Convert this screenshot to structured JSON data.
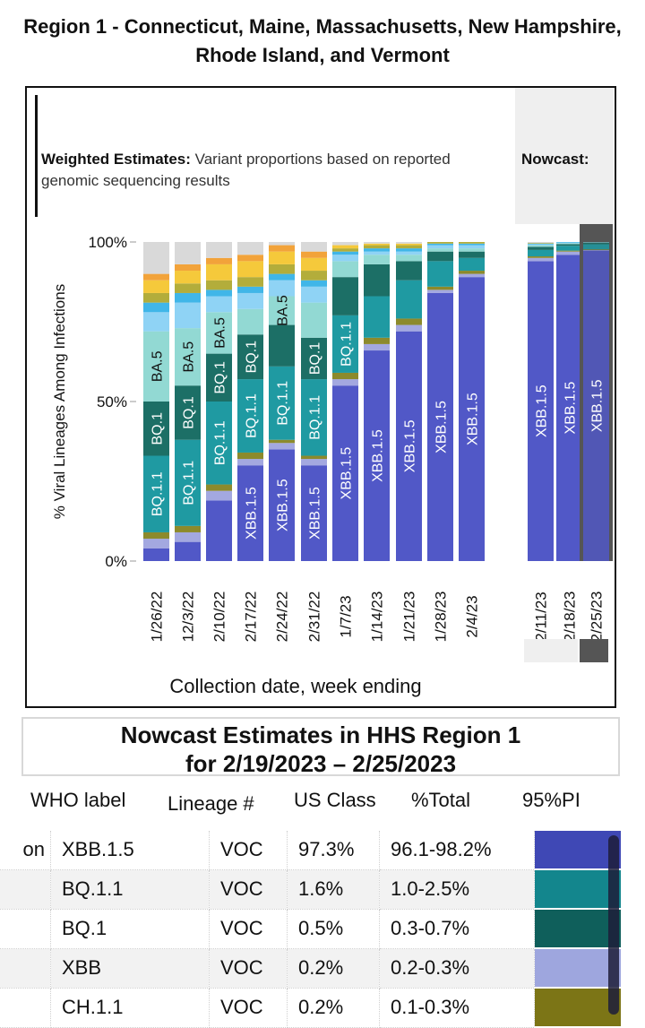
{
  "page_title": "Region 1 - Connecticut, Maine, Massachusetts, New Hampshire, Rhode Island, and Vermont",
  "chart_data": {
    "type": "bar",
    "stacked": true,
    "ylabel": "% Viral Lineages Among Infections",
    "xlabel": "Collection date, week ending",
    "yticks": [
      "100%",
      "50%",
      "0%"
    ],
    "ylim": [
      0,
      100
    ],
    "weighted_label_bold": "Weighted Estimates:",
    "weighted_label_text": "Variant proportions based on reported genomic sequencing results",
    "nowcast_label": "Nowcast:",
    "categories": [
      "1/26/22",
      "12/3/22",
      "2/10/22",
      "2/17/22",
      "2/24/22",
      "2/31/22",
      "1/7/23",
      "1/14/23",
      "1/21/23",
      "1/28/23",
      "2/4/23",
      "2/11/23",
      "2/18/23",
      "2/25/23"
    ],
    "nowcast_categories": [
      "2/11/23",
      "2/18/23",
      "2/25/23"
    ],
    "colors": {
      "XBB.1.5": "#5158c7",
      "XBB": "#a3a8e0",
      "CH.1.1": "#8c8a2c",
      "BQ.1.1": "#1f9aa2",
      "BQ.1": "#1c6f66",
      "BA.5": "#92d9d3",
      "other_light_blue": "#8fd3f5",
      "other_blue": "#40b6e8",
      "other_olive": "#b3ad3b",
      "other_yellow": "#f5c93b",
      "other_orange": "#f2a33a"
    },
    "series": [
      {
        "name": "XBB.1.5",
        "values": [
          4,
          6,
          19,
          30,
          35,
          30,
          55,
          66,
          72,
          84,
          89,
          94,
          96,
          97.3
        ]
      },
      {
        "name": "XBB",
        "values": [
          3,
          3,
          3,
          2,
          2,
          2,
          2,
          2,
          2,
          1,
          1,
          1,
          1,
          0.2
        ]
      },
      {
        "name": "CH.1.1",
        "values": [
          2,
          2,
          2,
          2,
          1,
          1,
          2,
          2,
          2,
          1,
          1,
          0.5,
          0.3,
          0.2
        ]
      },
      {
        "name": "BQ.1.1",
        "values": [
          24,
          27,
          26,
          23,
          23,
          24,
          18,
          13,
          12,
          8,
          4,
          2,
          1.5,
          1.6
        ]
      },
      {
        "name": "BQ.1",
        "values": [
          17,
          17,
          15,
          14,
          13,
          13,
          12,
          10,
          6,
          3,
          2,
          1,
          0.5,
          0.5
        ]
      },
      {
        "name": "BA.5",
        "values": [
          22,
          18,
          13,
          8,
          9,
          11,
          5,
          3,
          2,
          1,
          1,
          0.5,
          0.3,
          0.1
        ]
      },
      {
        "name": "other_light_blue",
        "values": [
          6,
          8,
          5,
          5,
          5,
          5,
          2,
          1,
          1,
          1,
          1,
          0.3,
          0.2,
          0.1
        ]
      },
      {
        "name": "other_blue",
        "values": [
          3,
          3,
          2,
          2,
          2,
          2,
          1,
          1,
          1,
          0.5,
          0.5,
          0.2,
          0.2,
          0.0
        ]
      },
      {
        "name": "other_olive",
        "values": [
          3,
          3,
          3,
          3,
          3,
          3,
          1,
          1,
          1,
          0.5,
          0.5,
          0.2,
          0.0,
          0.0
        ]
      },
      {
        "name": "other_yellow",
        "values": [
          4,
          4,
          5,
          5,
          4,
          4,
          1,
          0.5,
          0.5,
          0,
          0,
          0,
          0,
          0
        ]
      },
      {
        "name": "other_orange",
        "values": [
          2,
          2,
          2,
          2,
          2,
          2,
          0,
          0,
          0,
          0,
          0,
          0,
          0,
          0
        ]
      }
    ],
    "bar_labels": [
      [
        {
          "text": "BQ.1.1",
          "series": "BQ.1.1"
        },
        {
          "text": "BQ.1",
          "series": "BQ.1"
        },
        {
          "text": "BA.5",
          "series": "BA.5"
        }
      ],
      [
        {
          "text": "BQ.1.1",
          "series": "BQ.1.1"
        },
        {
          "text": "BQ.1",
          "series": "BQ.1"
        },
        {
          "text": "BA.5",
          "series": "BA.5"
        }
      ],
      [
        {
          "text": "BQ.1.1",
          "series": "BQ.1.1"
        },
        {
          "text": "BQ.1",
          "series": "BQ.1"
        },
        {
          "text": "BA.5",
          "series": "BA.5"
        }
      ],
      [
        {
          "text": "XBB.1.5",
          "series": "XBB.1.5"
        },
        {
          "text": "BQ.1.1",
          "series": "BQ.1.1"
        },
        {
          "text": "BQ.1",
          "series": "BQ.1"
        }
      ],
      [
        {
          "text": "XBB.1.5",
          "series": "XBB.1.5"
        },
        {
          "text": "BQ.1.1",
          "series": "BQ.1.1"
        },
        {
          "text": "BA.5",
          "series": "BA.5"
        }
      ],
      [
        {
          "text": "XBB.1.5",
          "series": "XBB.1.5"
        },
        {
          "text": "BQ.1.1",
          "series": "BQ.1.1"
        },
        {
          "text": "BQ.1",
          "series": "BQ.1"
        }
      ],
      [
        {
          "text": "XBB.1.5",
          "series": "XBB.1.5"
        },
        {
          "text": "BQ.1.1",
          "series": "BQ.1.1"
        }
      ],
      [
        {
          "text": "XBB.1.5",
          "series": "XBB.1.5"
        }
      ],
      [
        {
          "text": "XBB.1.5",
          "series": "XBB.1.5"
        }
      ],
      [
        {
          "text": "XBB.1.5",
          "series": "XBB.1.5"
        }
      ],
      [
        {
          "text": "XBB.1.5",
          "series": "XBB.1.5"
        }
      ],
      [
        {
          "text": "XBB.1.5",
          "series": "XBB.1.5"
        }
      ],
      [
        {
          "text": "XBB.1.5",
          "series": "XBB.1.5"
        }
      ],
      [
        {
          "text": "XBB.1.5",
          "series": "XBB.1.5"
        }
      ]
    ]
  },
  "nowcast_section": {
    "title_line1": "Nowcast Estimates in HHS Region 1",
    "title_line2": "for 2/19/2023 – 2/25/2023"
  },
  "table": {
    "headers": [
      "WHO label",
      "Lineage #",
      "US Class",
      "%Total",
      "95%PI"
    ],
    "rows": [
      {
        "who": "on",
        "lineage": "XBB.1.5",
        "us_class": "VOC",
        "total": "97.3%",
        "pi": "96.1-98.2%",
        "swatch": "#3f48b5"
      },
      {
        "who": "",
        "lineage": "BQ.1.1",
        "us_class": "VOC",
        "total": "1.6%",
        "pi": "1.0-2.5%",
        "swatch": "#13868d"
      },
      {
        "who": "",
        "lineage": "BQ.1",
        "us_class": "VOC",
        "total": "0.5%",
        "pi": "0.3-0.7%",
        "swatch": "#0f5f5b"
      },
      {
        "who": "",
        "lineage": "XBB",
        "us_class": "VOC",
        "total": "0.2%",
        "pi": "0.2-0.3%",
        "swatch": "#9ea6de"
      },
      {
        "who": "",
        "lineage": "CH.1.1",
        "us_class": "VOC",
        "total": "0.2%",
        "pi": "0.1-0.3%",
        "swatch": "#7c7516"
      }
    ]
  }
}
